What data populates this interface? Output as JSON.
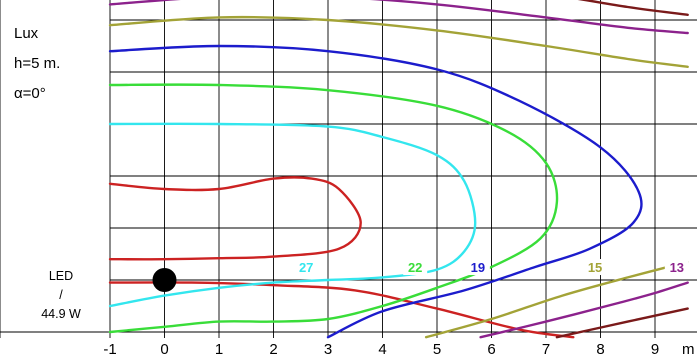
{
  "chart_data": {
    "type": "contour",
    "title": "",
    "xlabel": "m",
    "ylabel": "",
    "x_ticks": [
      "-1",
      "0",
      "1",
      "2",
      "3",
      "4",
      "5",
      "6",
      "7",
      "8",
      "9"
    ],
    "xlim": [
      -1.0,
      9.6
    ],
    "ylim": [
      -1.1,
      5.8
    ],
    "info": {
      "unit": "Lux",
      "height": "h=5 m.",
      "angle": "α=0°"
    },
    "lamp": {
      "type_line1": "LED",
      "type_line2": "/",
      "power": "44.9 W",
      "position": {
        "x": 0.0,
        "y": 0.0
      }
    },
    "contour_labels": [
      {
        "text": "27",
        "x": 2.6,
        "y": 0.23,
        "color": "#33e6ee"
      },
      {
        "text": "22",
        "x": 4.6,
        "y": 0.23,
        "color": "#39dd39"
      },
      {
        "text": "19",
        "x": 5.75,
        "y": 0.23,
        "color": "#1c1ccc"
      },
      {
        "text": "15",
        "x": 7.9,
        "y": 0.23,
        "color": "#a3a337"
      },
      {
        "text": "13",
        "x": 9.4,
        "y": 0.23,
        "color": "#8c228c"
      }
    ],
    "series": [
      {
        "color": "#cc2222",
        "points": [
          [
            -1,
            -0.05
          ],
          [
            0.5,
            -0.05
          ],
          [
            2,
            -0.1
          ],
          [
            3.5,
            -0.2
          ],
          [
            5,
            -0.55
          ],
          [
            6.5,
            -0.95
          ],
          [
            7.5,
            -1.1
          ]
        ]
      },
      {
        "color": "#cc2222",
        "points": [
          [
            -1,
            1.85
          ],
          [
            0,
            1.75
          ],
          [
            1,
            1.75
          ],
          [
            2,
            1.95
          ],
          [
            2.7,
            1.95
          ],
          [
            3.2,
            1.75
          ],
          [
            3.6,
            1.1
          ],
          [
            3.2,
            0.6
          ],
          [
            2,
            0.45
          ],
          [
            1,
            0.42
          ],
          [
            0,
            0.4
          ],
          [
            -1,
            0.4
          ]
        ]
      },
      {
        "color": "#33e6ee",
        "points": [
          [
            -1,
            -0.5
          ],
          [
            0,
            -0.3
          ],
          [
            1,
            -0.15
          ],
          [
            2,
            -0.05
          ],
          [
            3,
            0.0
          ],
          [
            4,
            0.05
          ],
          [
            5,
            0.2
          ],
          [
            5.5,
            0.55
          ],
          [
            5.7,
            1.1
          ],
          [
            5.5,
            1.9
          ],
          [
            5,
            2.4
          ],
          [
            4,
            2.75
          ],
          [
            3,
            2.95
          ],
          [
            1,
            3.0
          ],
          [
            -1,
            3.0
          ]
        ]
      },
      {
        "color": "#39dd39",
        "points": [
          [
            -1,
            -1.0
          ],
          [
            0,
            -0.9
          ],
          [
            1,
            -0.8
          ],
          [
            2,
            -0.8
          ],
          [
            3,
            -0.75
          ],
          [
            4,
            -0.5
          ],
          [
            5,
            -0.15
          ],
          [
            6,
            0.25
          ],
          [
            6.9,
            0.8
          ],
          [
            7.2,
            1.5
          ],
          [
            7,
            2.25
          ],
          [
            6.3,
            2.85
          ],
          [
            5,
            3.35
          ],
          [
            3,
            3.65
          ],
          [
            1,
            3.75
          ],
          [
            -1,
            3.75
          ]
        ]
      },
      {
        "color": "#1c1ccc",
        "points": [
          [
            -1,
            4.4
          ],
          [
            1,
            4.5
          ],
          [
            3,
            4.4
          ],
          [
            5,
            4.05
          ],
          [
            6.5,
            3.45
          ],
          [
            8,
            2.55
          ],
          [
            8.7,
            1.7
          ],
          [
            8.6,
            1.1
          ],
          [
            7.8,
            0.6
          ],
          [
            6.8,
            0.25
          ],
          [
            5.5,
            -0.2
          ],
          [
            4,
            -0.6
          ],
          [
            3,
            -1.1
          ]
        ]
      },
      {
        "color": "#a3a337",
        "points": [
          [
            -1,
            4.9
          ],
          [
            1,
            5.05
          ],
          [
            3,
            5.0
          ],
          [
            5,
            4.8
          ],
          [
            7,
            4.5
          ],
          [
            8.5,
            4.25
          ],
          [
            9.6,
            4.1
          ]
        ]
      },
      {
        "color": "#a3a337",
        "points": [
          [
            4.8,
            -1.1
          ],
          [
            6,
            -0.75
          ],
          [
            7.3,
            -0.3
          ],
          [
            8.5,
            0.05
          ],
          [
            9.6,
            0.35
          ]
        ]
      },
      {
        "color": "#8c228c",
        "points": [
          [
            -1,
            5.3
          ],
          [
            1,
            5.45
          ],
          [
            3,
            5.45
          ],
          [
            5,
            5.3
          ],
          [
            7,
            5.05
          ],
          [
            8.5,
            4.85
          ],
          [
            9.6,
            4.75
          ]
        ]
      },
      {
        "color": "#8c228c",
        "points": [
          [
            5.8,
            -1.1
          ],
          [
            7,
            -0.8
          ],
          [
            8.3,
            -0.45
          ],
          [
            9,
            -0.25
          ],
          [
            9.6,
            -0.05
          ]
        ]
      },
      {
        "color": "#7a1a1a",
        "points": [
          [
            -1,
            5.65
          ],
          [
            1,
            5.85
          ],
          [
            3,
            5.85
          ],
          [
            5,
            5.75
          ],
          [
            7,
            5.5
          ],
          [
            8.5,
            5.25
          ],
          [
            9.6,
            5.1
          ]
        ]
      },
      {
        "color": "#7a1a1a",
        "points": [
          [
            7.2,
            -1.1
          ],
          [
            8.5,
            -0.8
          ],
          [
            9.6,
            -0.55
          ]
        ]
      },
      {
        "color": "#16848c",
        "points": [
          [
            1.2,
            5.95
          ],
          [
            3,
            6.0
          ],
          [
            5,
            5.95
          ],
          [
            7,
            5.8
          ],
          [
            8.5,
            5.6
          ],
          [
            9.6,
            5.45
          ]
        ]
      },
      {
        "color": "#2a8a2a",
        "points": [
          [
            5.5,
            6.05
          ],
          [
            7,
            6.0
          ],
          [
            8.5,
            5.85
          ],
          [
            9.6,
            5.7
          ]
        ]
      }
    ]
  }
}
